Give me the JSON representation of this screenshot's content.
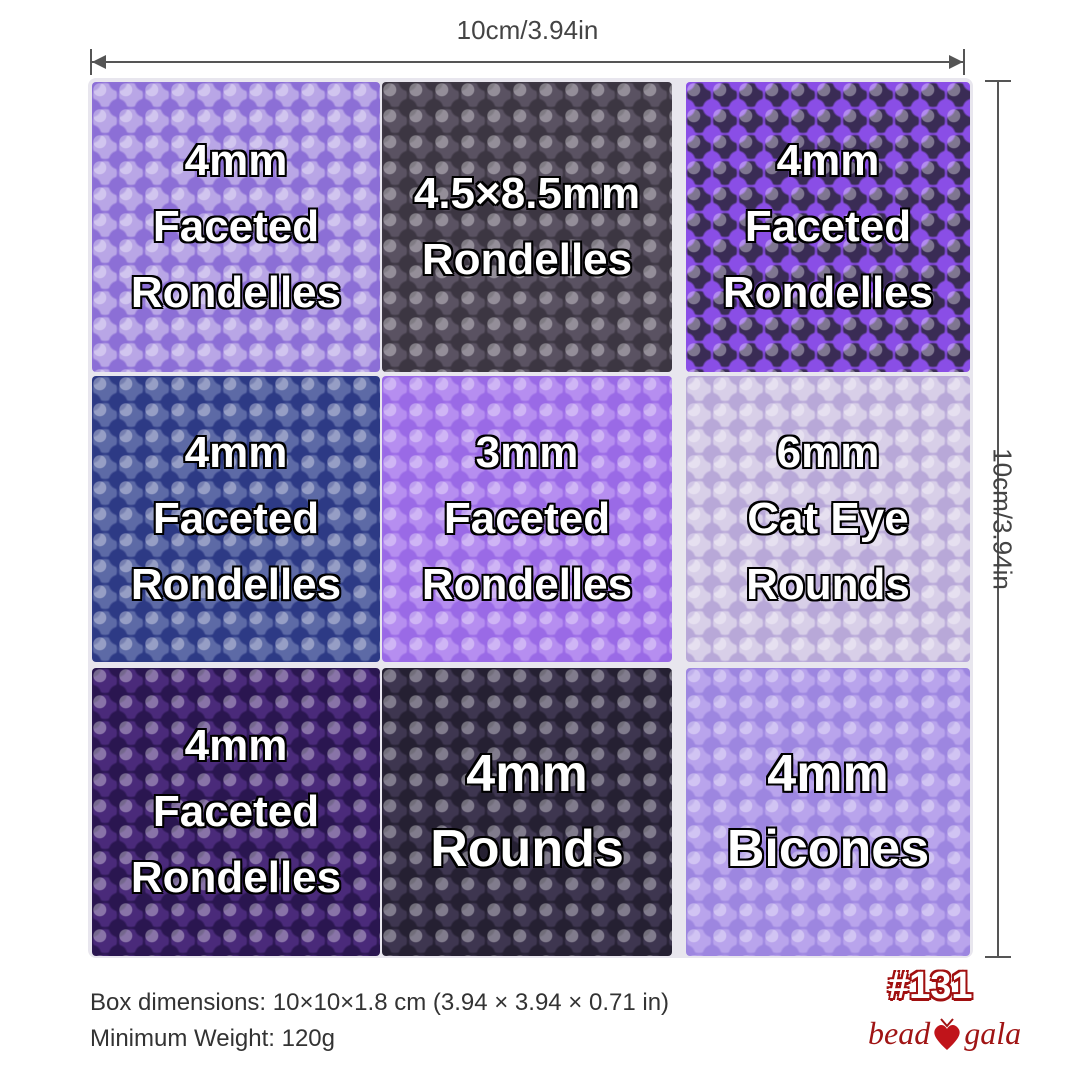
{
  "dimensions": {
    "width_label": "10cm/3.94in",
    "height_label": "10cm/3.94in"
  },
  "cells": [
    {
      "lines": [
        "4mm",
        "Faceted",
        "Rondelles"
      ],
      "bead_color": "#b9a6e6",
      "accent": "#8c6fd6"
    },
    {
      "lines": [
        "4.5×8.5mm",
        "Rondelles"
      ],
      "bead_color": "#5a5262",
      "accent": "#3c3642"
    },
    {
      "lines": [
        "4mm",
        "Faceted",
        "Rondelles"
      ],
      "bead_color": "#3a2c55",
      "accent": "#8a4ee6"
    },
    {
      "lines": [
        "4mm",
        "Faceted",
        "Rondelles"
      ],
      "bead_color": "#5d6aa6",
      "accent": "#2d3a85"
    },
    {
      "lines": [
        "3mm",
        "Faceted",
        "Rondelles"
      ],
      "bead_color": "#b68ef0",
      "accent": "#9a6ae6"
    },
    {
      "lines": [
        "6mm",
        "Cat Eye",
        "Rounds"
      ],
      "bead_color": "#d8cfe8",
      "accent": "#b8a8d8"
    },
    {
      "lines": [
        "4mm",
        "Faceted",
        "Rondelles"
      ],
      "bead_color": "#4a2a7a",
      "accent": "#2a1650"
    },
    {
      "lines": [
        "4mm",
        "Rounds"
      ],
      "bead_color": "#3e3650",
      "accent": "#252032"
    },
    {
      "lines": [
        "4mm",
        "Bicones"
      ],
      "bead_color": "#b9a4ec",
      "accent": "#9d86e0"
    }
  ],
  "footer": {
    "box_dimensions": "Box dimensions: 10×10×1.8 cm (3.94 × 3.94 × 0.71 in)",
    "weight": "Minimum Weight: 120g"
  },
  "product_code": "#131",
  "logo": {
    "left": "bead",
    "right": "gala",
    "color": "#a01414"
  }
}
